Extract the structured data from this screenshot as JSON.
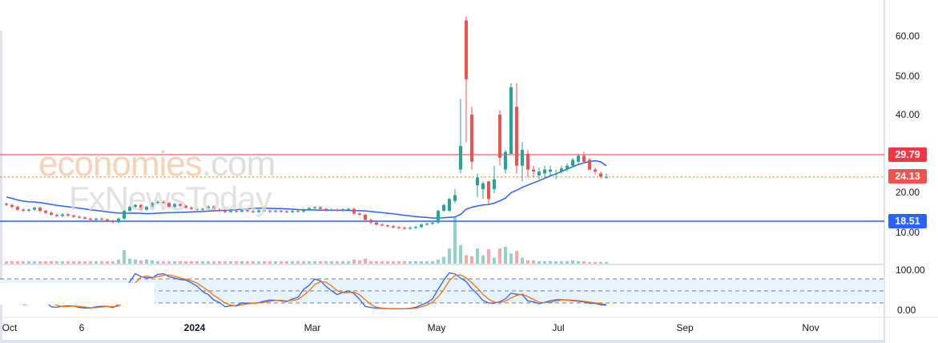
{
  "chart_data": {
    "type": "candlestick",
    "title": "",
    "price_axis": {
      "ticks": [
        "60.00",
        "50.00",
        "40.00",
        "20.00",
        "10.00"
      ],
      "range": [
        10,
        65
      ]
    },
    "oscillator_axis": {
      "ticks": [
        "100.00",
        "0.00"
      ],
      "levels": [
        80,
        50,
        20
      ]
    },
    "time_axis": {
      "ticks": [
        "Oct",
        "6",
        "2024",
        "Mar",
        "May",
        "Jul",
        "Sep",
        "Nov"
      ]
    },
    "closes_early": [
      17,
      16.5,
      15.8,
      15.5,
      15.8,
      16.3,
      15.5,
      15,
      14.5,
      14.2,
      14.6,
      14.3,
      14,
      13.8,
      13.5,
      13.2,
      13.5,
      13.3,
      12.9,
      12.6,
      13.5,
      15.5,
      16.5,
      17,
      15.8,
      16.5,
      17.5,
      17.8,
      17.5,
      16.5,
      17.2,
      16.8,
      16.3,
      16,
      15.8,
      16,
      16.6,
      15.8,
      15.5,
      15.2,
      15.5,
      15.3,
      15.7,
      15.4,
      15.2,
      15.6,
      15.5,
      15.3,
      15.5,
      15.4,
      15.2,
      15.5,
      15.3,
      15.8,
      16.2,
      16.4,
      16,
      15.6,
      15.8,
      15.5,
      15.9,
      16,
      14.8,
      14.5,
      13.2,
      12.5,
      12,
      11.8,
      11.6,
      11.3,
      11.2,
      11,
      11.2,
      11.4,
      12,
      12.2,
      12.5,
      15.5,
      17
    ],
    "ohlc_late": [
      [
        15.5,
        18.8,
        15.2,
        18.5
      ],
      [
        18,
        21,
        17.5,
        19.5
      ],
      [
        26,
        44,
        25,
        32
      ],
      [
        64,
        65,
        33,
        49
      ],
      [
        40,
        42,
        26,
        28
      ],
      [
        22,
        25,
        19,
        24
      ],
      [
        21,
        23,
        18.5,
        22.5
      ],
      [
        23,
        23,
        17,
        18.5
      ],
      [
        21,
        27,
        20,
        23.5
      ],
      [
        40,
        41,
        27,
        29
      ],
      [
        26,
        31,
        25,
        30.5
      ],
      [
        30,
        48,
        30,
        47
      ],
      [
        42,
        48,
        25,
        27
      ],
      [
        27,
        33,
        23,
        31
      ],
      [
        30,
        31,
        24,
        26
      ],
      [
        26,
        27,
        24,
        25.5
      ],
      [
        24.5,
        26.5,
        23.5,
        25.5
      ],
      [
        25,
        27,
        24,
        26
      ],
      [
        25.5,
        27,
        24.5,
        26
      ],
      [
        25,
        26,
        23.5,
        25
      ],
      [
        25.5,
        27,
        25,
        26.3
      ],
      [
        26,
        27.5,
        25.5,
        27
      ],
      [
        27,
        29,
        26.5,
        28.5
      ],
      [
        28,
        30,
        27.5,
        29.5
      ],
      [
        29.5,
        30.5,
        27.5,
        28
      ],
      [
        28.5,
        29,
        25.8,
        26
      ],
      [
        26,
        26.5,
        24.8,
        25.5
      ],
      [
        25,
        25.5,
        23.8,
        24.2
      ],
      [
        24,
        25,
        23.8,
        24.13
      ]
    ],
    "volume_relative": [
      3,
      3,
      3,
      3,
      3,
      3,
      3,
      3,
      3,
      3,
      3,
      3,
      3,
      3,
      3,
      3,
      3,
      3,
      3,
      3,
      5,
      16,
      6,
      5,
      4,
      5,
      4,
      3,
      3,
      3,
      3,
      3,
      3,
      3,
      3,
      3,
      3,
      3,
      3,
      3,
      3,
      3,
      3,
      3,
      3,
      3,
      3,
      3,
      3,
      3,
      3,
      3,
      3,
      3,
      3,
      3,
      3,
      3,
      3,
      3,
      3,
      3,
      5,
      4,
      6,
      3,
      3,
      3,
      3,
      3,
      3,
      3,
      3,
      3,
      3,
      3,
      3,
      5,
      8,
      18,
      55,
      22,
      10,
      9,
      18,
      10,
      17,
      7,
      18,
      20,
      12,
      15,
      7,
      4,
      4,
      3,
      3,
      3,
      3,
      3,
      3,
      4,
      3,
      3,
      2,
      2,
      2,
      2
    ],
    "horizontal_lines": [
      {
        "label": "29.79",
        "color": "#f23645",
        "style": "solid"
      },
      {
        "label": "24.13",
        "color": "#ef5350",
        "style": "dotted",
        "line_color": "#f59d1a"
      },
      {
        "label": "18.51",
        "color": "#2962ff",
        "style": "solid"
      }
    ],
    "colors": {
      "up": "#26a69a",
      "down": "#ef5350",
      "ma": "#2962ff",
      "k": "#2962ff",
      "d": "#ff6d00"
    }
  },
  "watermark": {
    "line1": "economies",
    "line1b": ".com",
    "line2": "FxNewsToday"
  }
}
